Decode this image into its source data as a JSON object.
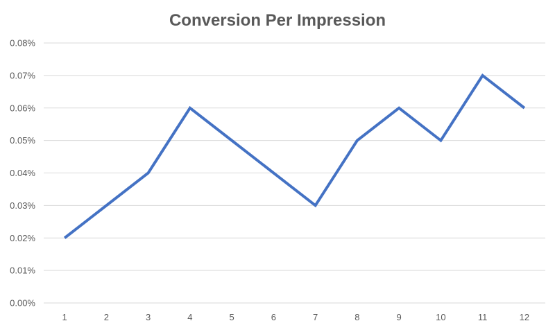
{
  "chart_data": {
    "type": "line",
    "title": "Conversion Per Impression",
    "xlabel": "",
    "ylabel": "",
    "x": [
      1,
      2,
      3,
      4,
      5,
      6,
      7,
      8,
      9,
      10,
      11,
      12
    ],
    "x_tick_labels": [
      "1",
      "2",
      "3",
      "4",
      "5",
      "6",
      "7",
      "8",
      "9",
      "10",
      "11",
      "12"
    ],
    "y_tick_labels": [
      "0.00%",
      "0.01%",
      "0.02%",
      "0.03%",
      "0.04%",
      "0.05%",
      "0.06%",
      "0.07%",
      "0.08%"
    ],
    "ylim": [
      0,
      0.08
    ],
    "y_unit": "%",
    "grid": true,
    "legend": "none",
    "series": [
      {
        "values": [
          0.02,
          0.03,
          0.04,
          0.06,
          0.05,
          0.04,
          0.03,
          0.05,
          0.06,
          0.05,
          0.07,
          0.06
        ],
        "color": "#4472c4"
      }
    ]
  }
}
